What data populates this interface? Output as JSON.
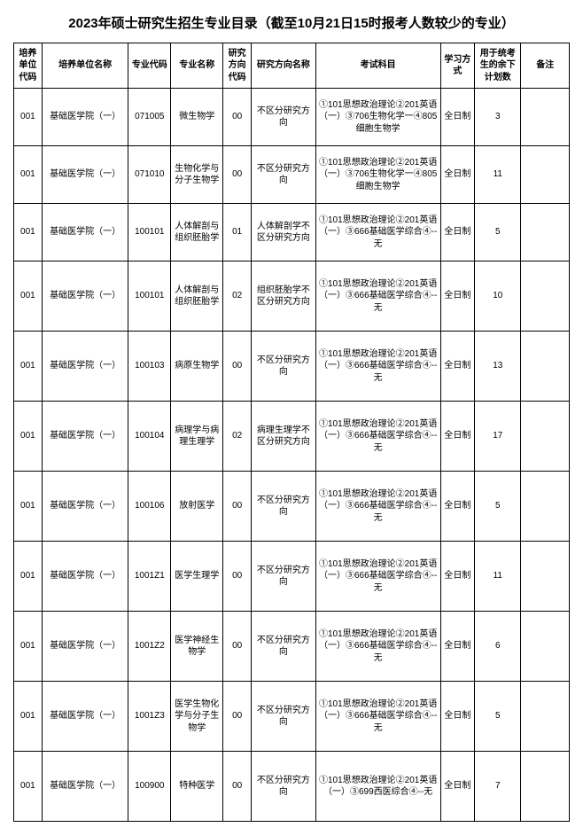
{
  "title": "2023年硕士研究生招生专业目录（截至10月21日15时报考人数较少的专业）",
  "headers": [
    "培养单位代码",
    "培养单位名称",
    "专业代码",
    "专业名称",
    "研究方向代码",
    "研究方向名称",
    "考试科目",
    "学习方式",
    "用于统考生的余下计划数",
    "备注"
  ],
  "rows": [
    {
      "c0": "001",
      "c1": "基础医学院（一）",
      "c2": "071005",
      "c3": "微生物学",
      "c4": "00",
      "c5": "不区分研究方向",
      "c6": "①101思想政治理论②201英语（一）③706生物化学一④805细胞生物学",
      "c7": "全日制",
      "c8": "3",
      "c9": "",
      "h": false
    },
    {
      "c0": "001",
      "c1": "基础医学院（一）",
      "c2": "071010",
      "c3": "生物化学与分子生物学",
      "c4": "00",
      "c5": "不区分研究方向",
      "c6": "①101思想政治理论②201英语（一）③706生物化学一④805细胞生物学",
      "c7": "全日制",
      "c8": "11",
      "c9": "",
      "h": false
    },
    {
      "c0": "001",
      "c1": "基础医学院（一）",
      "c2": "100101",
      "c3": "人体解剖与组织胚胎学",
      "c4": "01",
      "c5": "人体解剖学不区分研究方向",
      "c6": "①101思想政治理论②201英语（一）③666基础医学综合④--无",
      "c7": "全日制",
      "c8": "5",
      "c9": "",
      "h": false
    },
    {
      "c0": "001",
      "c1": "基础医学院（一）",
      "c2": "100101",
      "c3": "人体解剖与组织胚胎学",
      "c4": "02",
      "c5": "组织胚胎学不区分研究方向",
      "c6": "①101思想政治理论②201英语（一）③666基础医学综合④--无",
      "c7": "全日制",
      "c8": "10",
      "c9": "",
      "h": true
    },
    {
      "c0": "001",
      "c1": "基础医学院（一）",
      "c2": "100103",
      "c3": "病原生物学",
      "c4": "00",
      "c5": "不区分研究方向",
      "c6": "①101思想政治理论②201英语（一）③666基础医学综合④--无",
      "c7": "全日制",
      "c8": "13",
      "c9": "",
      "h": true
    },
    {
      "c0": "001",
      "c1": "基础医学院（一）",
      "c2": "100104",
      "c3": "病理学与病理生理学",
      "c4": "02",
      "c5": "病理生理学不区分研究方向",
      "c6": "①101思想政治理论②201英语（一）③666基础医学综合④--无",
      "c7": "全日制",
      "c8": "17",
      "c9": "",
      "h": true
    },
    {
      "c0": "001",
      "c1": "基础医学院（一）",
      "c2": "100106",
      "c3": "放射医学",
      "c4": "00",
      "c5": "不区分研究方向",
      "c6": "①101思想政治理论②201英语（一）③666基础医学综合④--无",
      "c7": "全日制",
      "c8": "5",
      "c9": "",
      "h": true
    },
    {
      "c0": "001",
      "c1": "基础医学院（一）",
      "c2": "1001Z1",
      "c3": "医学生理学",
      "c4": "00",
      "c5": "不区分研究方向",
      "c6": "①101思想政治理论②201英语（一）③666基础医学综合④--无",
      "c7": "全日制",
      "c8": "11",
      "c9": "",
      "h": true
    },
    {
      "c0": "001",
      "c1": "基础医学院（一）",
      "c2": "1001Z2",
      "c3": "医学神经生物学",
      "c4": "00",
      "c5": "不区分研究方向",
      "c6": "①101思想政治理论②201英语（一）③666基础医学综合④--无",
      "c7": "全日制",
      "c8": "6",
      "c9": "",
      "h": true
    },
    {
      "c0": "001",
      "c1": "基础医学院（一）",
      "c2": "1001Z3",
      "c3": "医学生物化学与分子生物学",
      "c4": "00",
      "c5": "不区分研究方向",
      "c6": "①101思想政治理论②201英语（一）③666基础医学综合④--无",
      "c7": "全日制",
      "c8": "5",
      "c9": "",
      "h": true
    },
    {
      "c0": "001",
      "c1": "基础医学院（一）",
      "c2": "100900",
      "c3": "特种医学",
      "c4": "00",
      "c5": "不区分研究方向",
      "c6": "①101思想政治理论②201英语（一）③699西医综合④--无",
      "c7": "全日制",
      "c8": "7",
      "c9": "",
      "h": true
    }
  ]
}
